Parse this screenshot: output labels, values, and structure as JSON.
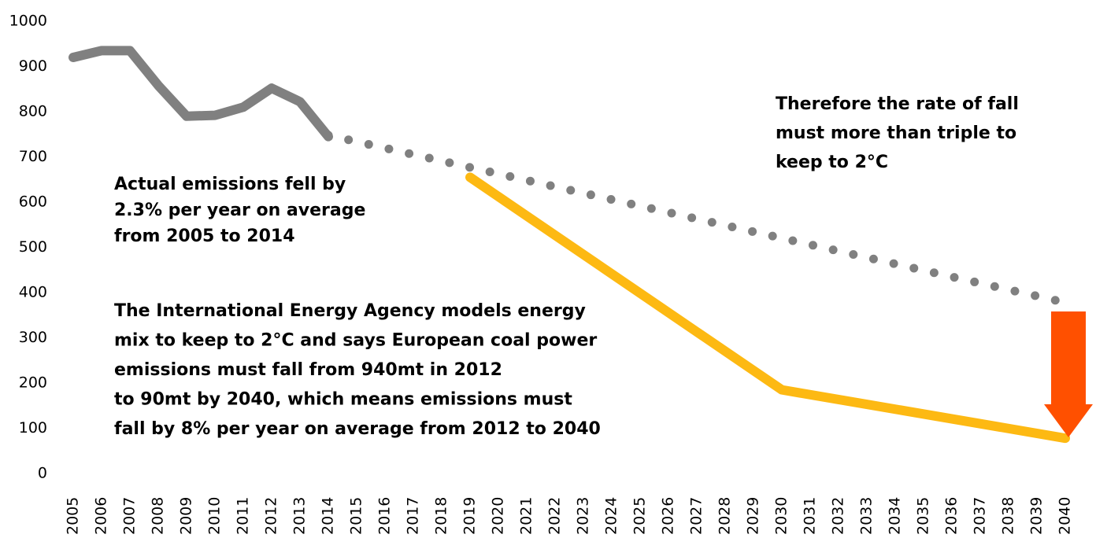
{
  "chart_data": {
    "type": "line",
    "xlim": [
      2005,
      2040
    ],
    "xticks": [
      2005,
      2006,
      2007,
      2008,
      2009,
      2010,
      2011,
      2012,
      2013,
      2014,
      2015,
      2016,
      2017,
      2018,
      2019,
      2020,
      2021,
      2022,
      2023,
      2024,
      2025,
      2026,
      2027,
      2028,
      2029,
      2030,
      2031,
      2032,
      2033,
      2034,
      2035,
      2036,
      2037,
      2038,
      2039,
      2040
    ],
    "ylim": [
      0,
      1000
    ],
    "yticks": [
      0,
      100,
      200,
      300,
      400,
      500,
      600,
      700,
      800,
      900,
      1000
    ],
    "grid": false,
    "series": [
      {
        "color": "#808080",
        "style": "solid",
        "x": [
          2005,
          2006,
          2007,
          2008,
          2009,
          2010,
          2011,
          2012,
          2013,
          2014
        ],
        "values": [
          920,
          935,
          935,
          858,
          790,
          792,
          810,
          852,
          822,
          745
        ]
      },
      {
        "color": "#808080",
        "style": "dotted",
        "x": [
          2014,
          2040
        ],
        "values": [
          748,
          378
        ]
      },
      {
        "color": "#fdb913",
        "style": "solid",
        "x": [
          2019,
          2030,
          2040
        ],
        "values": [
          655,
          185,
          78
        ]
      }
    ],
    "annotations": [
      {
        "lines": [
          "Actual emissions fell by",
          "2.3% per year on average",
          "from 2005 to 2014"
        ]
      },
      {
        "lines": [
          "The International Energy Agency models energy",
          "mix to keep to 2°C and says European coal power",
          "emissions must fall from 940mt in 2012",
          "to 90mt by 2040, which means emissions must",
          "fall by 8% per year on average from 2012 to 2040"
        ]
      },
      {
        "lines": [
          "Therefore the rate of fall",
          "must more than triple to",
          "keep to 2°C"
        ]
      }
    ]
  }
}
